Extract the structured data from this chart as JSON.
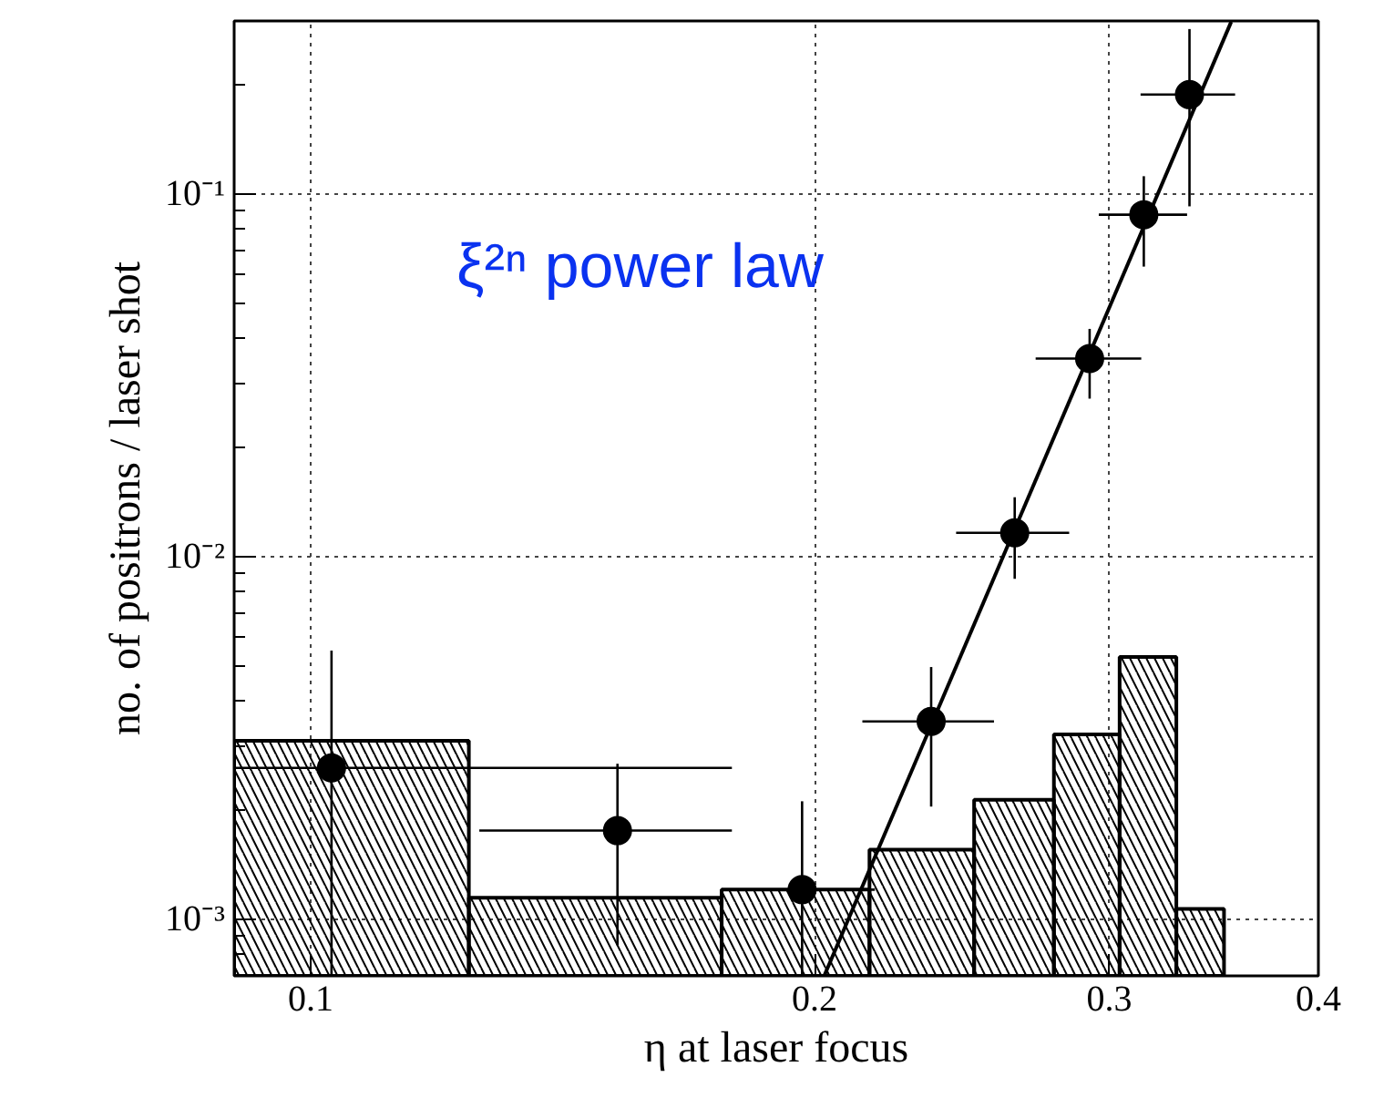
{
  "chart_data": {
    "type": "scatter",
    "xlabel": "η at laser focus",
    "ylabel": "no. of positrons / laser shot",
    "log": "xy",
    "grid": true,
    "xlim": [
      0.09,
      0.4
    ],
    "xticks": [
      0.1,
      0.2,
      0.3,
      0.4
    ],
    "ylim": [
      0.0007,
      0.3
    ],
    "yticks": [
      {
        "value": 0.001,
        "label": "10⁻³"
      },
      {
        "value": 0.01,
        "label": "10⁻²"
      },
      {
        "value": 0.1,
        "label": "10⁻¹"
      }
    ],
    "annotations": [
      "ξ²ⁿ power law"
    ],
    "series": [
      {
        "type": "histogram",
        "color": "#000000",
        "bins": [
          0.09,
          0.1243,
          0.176,
          0.2157,
          0.2491,
          0.278,
          0.3043,
          0.329,
          0.3513
        ],
        "values": [
          0.00311,
          0.00115,
          0.00121,
          0.00156,
          0.00214,
          0.00324,
          0.0053,
          0.00107
        ]
      },
      {
        "marker": "circle",
        "color": "#000000",
        "x": [
          0.1029,
          0.1525,
          0.1966,
          0.2348,
          0.2634,
          0.292,
          0.3146,
          0.335
        ],
        "values": [
          0.00262,
          0.00176,
          0.00121,
          0.00352,
          0.01165,
          0.0352,
          0.0877,
          0.188
        ],
        "xerrors": [
          [
            0.09,
            0.1785
          ],
          [
            0.1261,
            0.1785
          ],
          [
            0.176,
            0.2173
          ],
          [
            0.2136,
            0.256
          ],
          [
            0.243,
            0.2839
          ],
          [
            0.2711,
            0.3135
          ],
          [
            0.2957,
            0.3339
          ],
          [
            0.3132,
            0.3567
          ]
        ],
        "errors": [
          [
            0.0007,
            0.00552
          ],
          [
            0.00085,
            0.00269
          ],
          [
            0.0007,
            0.00212
          ],
          [
            0.00205,
            0.00497
          ],
          [
            0.0087,
            0.0146
          ],
          [
            0.0273,
            0.0425
          ],
          [
            0.0631,
            0.112
          ],
          [
            0.0925,
            0.285
          ]
        ]
      },
      {
        "type": "line",
        "color": "#000000",
        "x": [
          0.2027,
          0.3548
        ],
        "values": [
          0.000701,
          0.2985
        ]
      }
    ]
  }
}
